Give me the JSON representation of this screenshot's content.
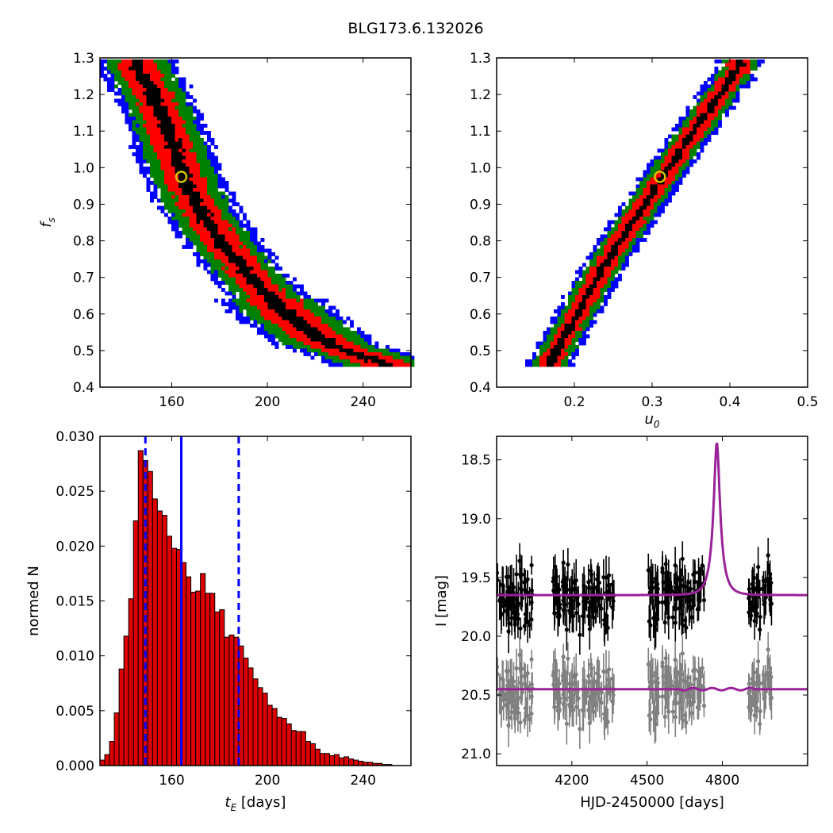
{
  "title": "BLG173.6.132026",
  "chart_data": [
    {
      "type": "heatmap",
      "panel": "top-left",
      "xlim": [
        130,
        260
      ],
      "ylim": [
        0.4,
        1.3
      ],
      "xticks": [
        "160",
        "200",
        "240"
      ],
      "xtick_values": [
        160,
        200,
        240
      ],
      "yticks": [
        "0.4",
        "0.5",
        "0.6",
        "0.7",
        "0.8",
        "0.9",
        "1.0",
        "1.1",
        "1.2",
        "1.3"
      ],
      "ytick_values": [
        0.4,
        0.5,
        0.6,
        0.7,
        0.8,
        0.9,
        1.0,
        1.1,
        1.2,
        1.3
      ],
      "xlabel": "",
      "ylabel": "f_s",
      "ylabel_base": "f",
      "ylabel_sub": "s",
      "ridge": [
        [
          145,
          1.28
        ],
        [
          152,
          1.2
        ],
        [
          158,
          1.1
        ],
        [
          163,
          1.0
        ],
        [
          170,
          0.9
        ],
        [
          180,
          0.8
        ],
        [
          193,
          0.7
        ],
        [
          208,
          0.6
        ],
        [
          225,
          0.52
        ],
        [
          248,
          0.47
        ]
      ],
      "band_halfwidths": {
        "black": 3,
        "red": 8,
        "green": 13,
        "blue": 17
      },
      "best_fit": {
        "x": 164,
        "y": 0.975
      },
      "colors": {
        "black": "#000000",
        "red": "#ff0000",
        "green": "#008000",
        "blue": "#0000ff",
        "marker": "#d4c400"
      }
    },
    {
      "type": "heatmap",
      "panel": "top-right",
      "xlim": [
        0.1,
        0.5
      ],
      "ylim": [
        0.4,
        1.3
      ],
      "xticks": [
        "0.2",
        "0.3",
        "0.4",
        "0.5"
      ],
      "xtick_values": [
        0.2,
        0.3,
        0.4,
        0.5
      ],
      "yticks": [
        "0.4",
        "0.5",
        "0.6",
        "0.7",
        "0.8",
        "0.9",
        "1.0",
        "1.1",
        "1.2",
        "1.3"
      ],
      "ytick_values": [
        0.4,
        0.5,
        0.6,
        0.7,
        0.8,
        0.9,
        1.0,
        1.1,
        1.2,
        1.3
      ],
      "xlabel": "u_0",
      "xlabel_base": "u",
      "xlabel_sub": "0",
      "ylabel": "",
      "ridge": [
        [
          0.165,
          0.47
        ],
        [
          0.2,
          0.6
        ],
        [
          0.24,
          0.75
        ],
        [
          0.28,
          0.88
        ],
        [
          0.31,
          0.975
        ],
        [
          0.35,
          1.1
        ],
        [
          0.39,
          1.22
        ],
        [
          0.41,
          1.28
        ]
      ],
      "band_halfwidths": {
        "black": 0.005,
        "red": 0.014,
        "green": 0.022,
        "blue": 0.03
      },
      "best_fit": {
        "x": 0.31,
        "y": 0.975
      },
      "colors": {
        "black": "#000000",
        "red": "#ff0000",
        "green": "#008000",
        "blue": "#0000ff",
        "marker": "#d4c400"
      }
    },
    {
      "type": "bar",
      "panel": "bottom-left",
      "xlim": [
        130,
        260
      ],
      "ylim": [
        0.0,
        0.03
      ],
      "xticks": [
        "160",
        "200",
        "240"
      ],
      "xtick_values": [
        160,
        200,
        240
      ],
      "yticks": [
        "0.000",
        "0.005",
        "0.010",
        "0.015",
        "0.020",
        "0.025",
        "0.030"
      ],
      "ytick_values": [
        0,
        0.005,
        0.01,
        0.015,
        0.02,
        0.025,
        0.03
      ],
      "xlabel": "t_E [days]",
      "xlabel_base": "t",
      "xlabel_sub": "E",
      "xlabel_rest": " [days]",
      "ylabel": "normed N",
      "bin_start": 130,
      "bin_width": 2,
      "values": [
        0.0005,
        0.001,
        0.0022,
        0.0048,
        0.0088,
        0.0118,
        0.0152,
        0.0223,
        0.0287,
        0.0278,
        0.0268,
        0.0243,
        0.0232,
        0.0228,
        0.0209,
        0.0198,
        0.0197,
        0.0185,
        0.0172,
        0.0158,
        0.0159,
        0.0175,
        0.0157,
        0.0157,
        0.014,
        0.0142,
        0.0117,
        0.0119,
        0.0117,
        0.0109,
        0.0098,
        0.0089,
        0.0079,
        0.0071,
        0.0066,
        0.0055,
        0.0052,
        0.0044,
        0.0043,
        0.0038,
        0.0032,
        0.0031,
        0.0031,
        0.0022,
        0.002,
        0.0015,
        0.0011,
        0.0011,
        0.0009,
        0.001,
        0.0007,
        0.0008,
        0.0006,
        0.0005,
        0.0004,
        0.0003,
        0.0003,
        0.0002,
        0.0002,
        0.0001,
        0.0001
      ],
      "vlines": [
        {
          "x": 149,
          "style": "dashed"
        },
        {
          "x": 164,
          "style": "solid"
        },
        {
          "x": 188,
          "style": "dashed"
        }
      ],
      "colors": {
        "bar": "#dd0000",
        "edge": "#000000",
        "line": "#0000ff"
      }
    },
    {
      "type": "scatter",
      "panel": "bottom-right",
      "xlim": [
        3900,
        5140
      ],
      "ylim": [
        21.1,
        18.3
      ],
      "y_inverted": true,
      "xticks": [
        "4200",
        "4500",
        "4800"
      ],
      "xtick_values": [
        4200,
        4500,
        4800
      ],
      "yticks": [
        "18.5",
        "19.0",
        "19.5",
        "20.0",
        "20.5",
        "21.0"
      ],
      "ytick_values": [
        18.5,
        19.0,
        19.5,
        20.0,
        20.5,
        21.0
      ],
      "xlabel": "HJD-2450000 [days]",
      "ylabel": "I [mag]",
      "seasons": [
        [
          3900,
          4045
        ],
        [
          4125,
          4370
        ],
        [
          4505,
          4730
        ],
        [
          4905,
          5000
        ]
      ],
      "model": {
        "baseline": 19.65,
        "peak_mag": 18.35,
        "t0": 4778,
        "tE": 164,
        "u0": 0.31,
        "fs": 0.975
      },
      "residual_offset": 20.45,
      "series": [
        {
          "name": "",
          "color": "#000000"
        },
        {
          "name": "",
          "color": "#808080"
        }
      ],
      "colors": {
        "model": "#992299",
        "data": "#000000",
        "residual": "#808080"
      }
    }
  ]
}
